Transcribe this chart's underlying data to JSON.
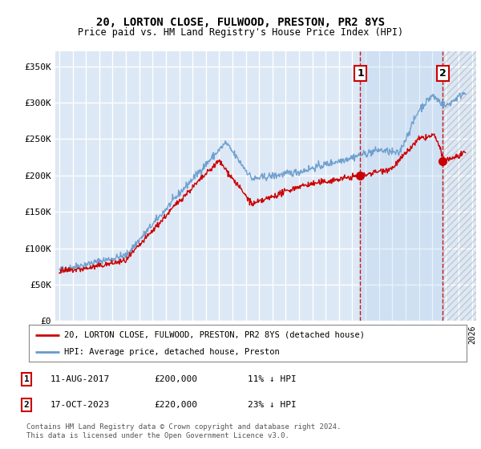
{
  "title": "20, LORTON CLOSE, FULWOOD, PRESTON, PR2 8YS",
  "subtitle": "Price paid vs. HM Land Registry's House Price Index (HPI)",
  "ylim": [
    0,
    370000
  ],
  "yticks": [
    0,
    50000,
    100000,
    150000,
    200000,
    250000,
    300000,
    350000
  ],
  "ytick_labels": [
    "£0",
    "£50K",
    "£100K",
    "£150K",
    "£200K",
    "£250K",
    "£300K",
    "£350K"
  ],
  "background_color": "#ffffff",
  "plot_bg_color": "#dce8f5",
  "grid_color": "#ffffff",
  "hpi_color": "#6699cc",
  "price_color": "#cc0000",
  "sale1_date": 2017.6,
  "sale1_price": 200000,
  "sale2_date": 2023.79,
  "sale2_price": 220000,
  "dashed_line_color": "#cc0000",
  "legend_label_red": "20, LORTON CLOSE, FULWOOD, PRESTON, PR2 8YS (detached house)",
  "legend_label_blue": "HPI: Average price, detached house, Preston",
  "table_entries": [
    {
      "num": "1",
      "date": "11-AUG-2017",
      "price": "£200,000",
      "hpi": "11% ↓ HPI"
    },
    {
      "num": "2",
      "date": "17-OCT-2023",
      "price": "£220,000",
      "hpi": "23% ↓ HPI"
    }
  ],
  "footer": "Contains HM Land Registry data © Crown copyright and database right 2024.\nThis data is licensed under the Open Government Licence v3.0.",
  "xstart": 1995,
  "xend": 2026
}
